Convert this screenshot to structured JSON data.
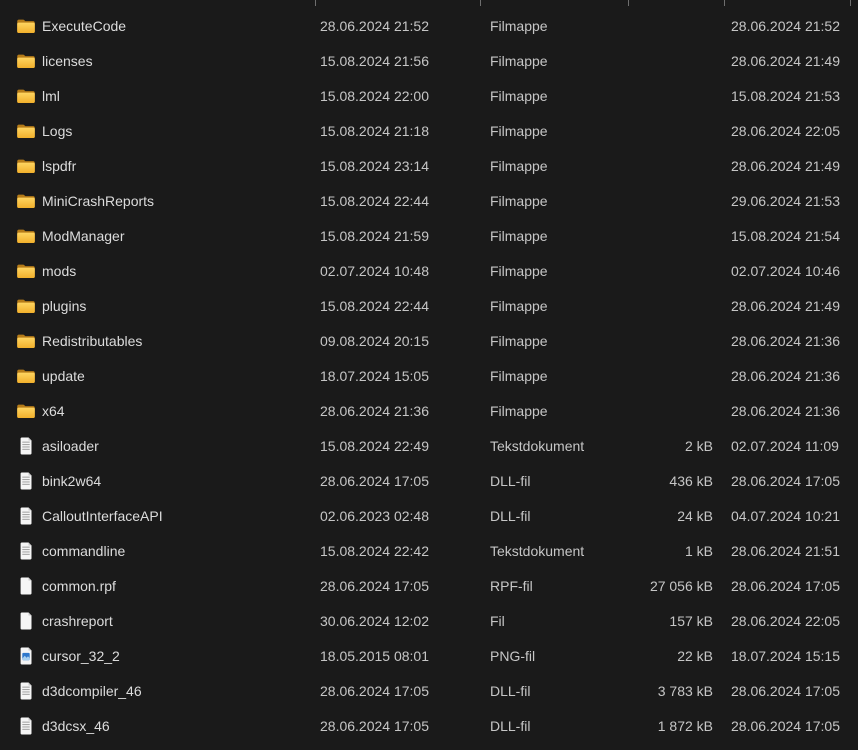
{
  "app": {
    "name": "file-explorer-details-view",
    "language": "Danish"
  },
  "colors": {
    "background": "#1a1a1a",
    "text_primary": "#dcdcdc",
    "text_secondary": "#c6c6c6",
    "separator": "#6e6e6e",
    "folder_back": "#b57b18",
    "folder_front_top": "#ffd561",
    "folder_front_bottom": "#f2b02c",
    "page_fill": "#f5f5f5",
    "page_fold": "#c9c9c9",
    "doc_line": "#a6a6a6",
    "image_thumb_blue": "#2f78cc",
    "image_thumb_light": "#a8d0f0"
  },
  "rows": [
    {
      "name": "ExecuteCode",
      "icon": "folder",
      "date_modified": "28.06.2024 21:52",
      "type": "Filmappe",
      "size": "",
      "date_created": "28.06.2024 21:52"
    },
    {
      "name": "licenses",
      "icon": "folder",
      "date_modified": "15.08.2024 21:56",
      "type": "Filmappe",
      "size": "",
      "date_created": "28.06.2024 21:49"
    },
    {
      "name": "lml",
      "icon": "folder",
      "date_modified": "15.08.2024 22:00",
      "type": "Filmappe",
      "size": "",
      "date_created": "15.08.2024 21:53"
    },
    {
      "name": "Logs",
      "icon": "folder",
      "date_modified": "15.08.2024 21:18",
      "type": "Filmappe",
      "size": "",
      "date_created": "28.06.2024 22:05"
    },
    {
      "name": "lspdfr",
      "icon": "folder",
      "date_modified": "15.08.2024 23:14",
      "type": "Filmappe",
      "size": "",
      "date_created": "28.06.2024 21:49"
    },
    {
      "name": "MiniCrashReports",
      "icon": "folder",
      "date_modified": "15.08.2024 22:44",
      "type": "Filmappe",
      "size": "",
      "date_created": "29.06.2024 21:53"
    },
    {
      "name": "ModManager",
      "icon": "folder",
      "date_modified": "15.08.2024 21:59",
      "type": "Filmappe",
      "size": "",
      "date_created": "15.08.2024 21:54"
    },
    {
      "name": "mods",
      "icon": "folder",
      "date_modified": "02.07.2024 10:48",
      "type": "Filmappe",
      "size": "",
      "date_created": "02.07.2024 10:46"
    },
    {
      "name": "plugins",
      "icon": "folder",
      "date_modified": "15.08.2024 22:44",
      "type": "Filmappe",
      "size": "",
      "date_created": "28.06.2024 21:49"
    },
    {
      "name": "Redistributables",
      "icon": "folder",
      "date_modified": "09.08.2024 20:15",
      "type": "Filmappe",
      "size": "",
      "date_created": "28.06.2024 21:36"
    },
    {
      "name": "update",
      "icon": "folder",
      "date_modified": "18.07.2024 15:05",
      "type": "Filmappe",
      "size": "",
      "date_created": "28.06.2024 21:36"
    },
    {
      "name": "x64",
      "icon": "folder",
      "date_modified": "28.06.2024 21:36",
      "type": "Filmappe",
      "size": "",
      "date_created": "28.06.2024 21:36"
    },
    {
      "name": "asiloader",
      "icon": "document",
      "date_modified": "15.08.2024 22:49",
      "type": "Tekstdokument",
      "size": "2 kB",
      "date_created": "02.07.2024 11:09"
    },
    {
      "name": "bink2w64",
      "icon": "document",
      "date_modified": "28.06.2024 17:05",
      "type": "DLL-fil",
      "size": "436 kB",
      "date_created": "28.06.2024 17:05"
    },
    {
      "name": "CalloutInterfaceAPI",
      "icon": "document",
      "date_modified": "02.06.2023 02:48",
      "type": "DLL-fil",
      "size": "24 kB",
      "date_created": "04.07.2024 10:21"
    },
    {
      "name": "commandline",
      "icon": "document",
      "date_modified": "15.08.2024 22:42",
      "type": "Tekstdokument",
      "size": "1 kB",
      "date_created": "28.06.2024 21:51"
    },
    {
      "name": "common.rpf",
      "icon": "blank-file",
      "date_modified": "28.06.2024 17:05",
      "type": "RPF-fil",
      "size": "27 056 kB",
      "date_created": "28.06.2024 17:05"
    },
    {
      "name": "crashreport",
      "icon": "blank-file",
      "date_modified": "30.06.2024 12:02",
      "type": "Fil",
      "size": "157 kB",
      "date_created": "28.06.2024 22:05"
    },
    {
      "name": "cursor_32_2",
      "icon": "image-file",
      "date_modified": "18.05.2015 08:01",
      "type": "PNG-fil",
      "size": "22 kB",
      "date_created": "18.07.2024 15:15"
    },
    {
      "name": "d3dcompiler_46",
      "icon": "document",
      "date_modified": "28.06.2024 17:05",
      "type": "DLL-fil",
      "size": "3 783 kB",
      "date_created": "28.06.2024 17:05"
    },
    {
      "name": "d3dcsx_46",
      "icon": "document",
      "date_modified": "28.06.2024 17:05",
      "type": "DLL-fil",
      "size": "1 872 kB",
      "date_created": "28.06.2024 17:05"
    }
  ]
}
